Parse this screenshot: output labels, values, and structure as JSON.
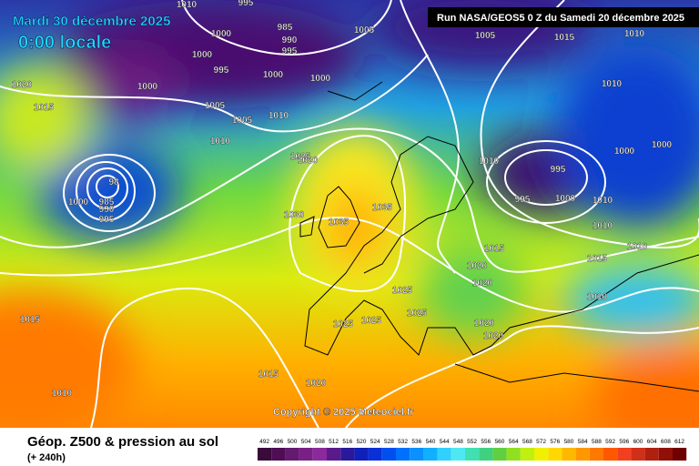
{
  "header": {
    "date": "Mardi 30 décembre 2025",
    "time": "0:00 locale",
    "run": "Run NASA/GEOS5 0 Z du Samedi 20 décembre 2025"
  },
  "copyright": "Copyright © 2025 Meteociel.fr",
  "footer": {
    "title": "Géop. Z500 & pression au sol",
    "lead": "(+ 240h)"
  },
  "legend": {
    "labels": [
      492,
      496,
      500,
      504,
      508,
      512,
      516,
      520,
      524,
      528,
      532,
      536,
      540,
      544,
      548,
      552,
      556,
      560,
      564,
      568,
      572,
      576,
      580,
      584,
      588,
      592,
      596,
      600,
      604,
      608,
      612
    ],
    "colors": [
      "#3a0a3a",
      "#4f0d56",
      "#641a6e",
      "#7a1f86",
      "#8c2a9c",
      "#5a1a8c",
      "#2a1a9a",
      "#1020b8",
      "#0a30d8",
      "#0050f0",
      "#0070ff",
      "#0a90ff",
      "#10b0ff",
      "#30d0ff",
      "#50e8f0",
      "#40e0b0",
      "#40d080",
      "#60d040",
      "#90e020",
      "#c0f010",
      "#f0f000",
      "#ffd800",
      "#ffb800",
      "#ff9800",
      "#ff7800",
      "#ff5800",
      "#f04020",
      "#d03018",
      "#b02010",
      "#901008",
      "#700000"
    ]
  },
  "isobar_labels": [
    1010,
    995,
    1000,
    985,
    990,
    995,
    1005,
    1000,
    995,
    1000,
    1000,
    1000,
    1020,
    1015,
    1005,
    1005,
    1010,
    1010,
    1025,
    1020,
    98,
    985,
    990,
    995,
    1000,
    1030,
    1035,
    1035,
    1005,
    1015,
    1010,
    1010,
    1010,
    995,
    995,
    1000,
    1000,
    1000,
    1010,
    1010,
    1010,
    1015,
    1015,
    1010,
    1020,
    1020,
    1025,
    1025,
    1025,
    1025,
    1020,
    1020,
    1015,
    1015,
    1020,
    1010
  ]
}
